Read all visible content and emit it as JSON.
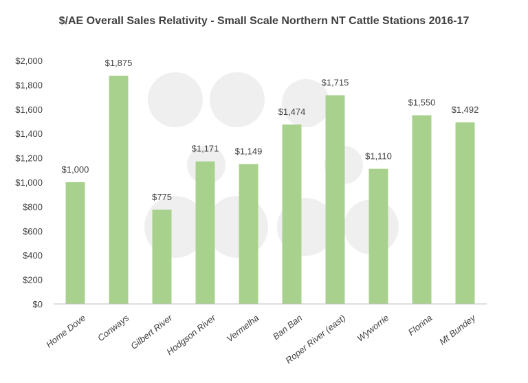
{
  "chart_data": {
    "type": "bar",
    "title": "$/AE Overall Sales Relativity - Small Scale Northern NT Cattle Stations 2016-17",
    "xlabel": "",
    "ylabel": "",
    "categories": [
      "Home Dove",
      "Conways",
      "Gilbert River",
      "Hodgson River",
      "Vermelha",
      "Ban Ban",
      "Roper River (east)",
      "Wyworrie",
      "Florina",
      "Mt Bundey"
    ],
    "values": [
      1000,
      1875,
      775,
      1171,
      1149,
      1474,
      1715,
      1110,
      1550,
      1492
    ],
    "data_labels": [
      "$1,000",
      "$1,875",
      "$775",
      "$1,171",
      "$1,149",
      "$1,474",
      "$1,715",
      "$1,110",
      "$1,550",
      "$1,492"
    ],
    "ylim": [
      0,
      2000
    ],
    "yticks": [
      0,
      200,
      400,
      600,
      800,
      1000,
      1200,
      1400,
      1600,
      1800,
      2000
    ],
    "ytick_labels": [
      "$0",
      "$200",
      "$400",
      "$600",
      "$800",
      "$1,000",
      "$1,200",
      "$1,400",
      "$1,600",
      "$1,800",
      "$2,000"
    ],
    "grid": false,
    "legend": "none",
    "bar_color": "#a9d18e",
    "text_color": "#404040",
    "axis_color": "#bfbfbf"
  }
}
